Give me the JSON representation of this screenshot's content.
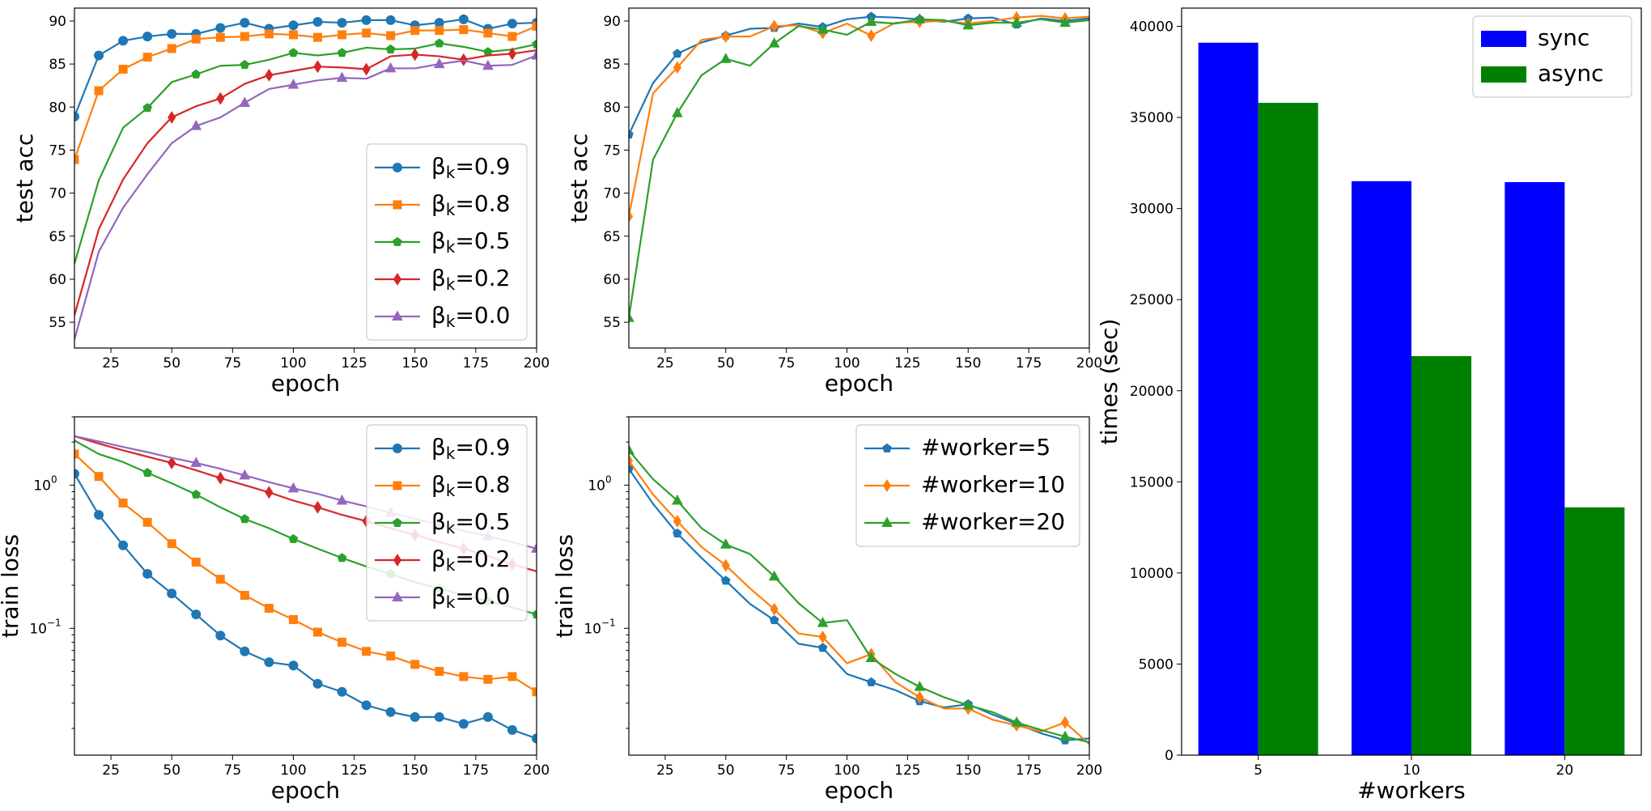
{
  "chart_data": [
    {
      "id": "p1",
      "type": "line",
      "xlabel": "epoch",
      "ylabel": "test acc",
      "yscale": "linear",
      "xlim": [
        10,
        200
      ],
      "ylim": [
        52,
        91.5
      ],
      "xticks": [
        25,
        50,
        75,
        100,
        125,
        150,
        175,
        200
      ],
      "yticks": [
        55,
        60,
        65,
        70,
        75,
        80,
        85,
        90
      ],
      "legend_loc": "lower-right",
      "x": [
        10,
        20,
        30,
        40,
        50,
        60,
        70,
        80,
        90,
        100,
        110,
        120,
        130,
        140,
        150,
        160,
        170,
        180,
        190,
        200
      ],
      "series": [
        {
          "name": "β_k=0.9",
          "label_sym": "β",
          "label_sub": "k",
          "label_rest": "=0.9",
          "color": "#1f77b4",
          "marker": "circle",
          "values": [
            78.9,
            86.0,
            87.7,
            88.2,
            88.5,
            88.5,
            89.2,
            89.8,
            89.1,
            89.5,
            89.9,
            89.8,
            90.1,
            90.1,
            89.5,
            89.8,
            90.2,
            89.1,
            89.7,
            89.8
          ]
        },
        {
          "name": "β_k=0.8",
          "label_sym": "β",
          "label_sub": "k",
          "label_rest": "=0.8",
          "color": "#ff7f0e",
          "marker": "square",
          "values": [
            73.9,
            81.9,
            84.4,
            85.8,
            86.8,
            87.9,
            88.1,
            88.2,
            88.5,
            88.4,
            88.1,
            88.4,
            88.6,
            88.3,
            88.9,
            88.9,
            89.0,
            88.6,
            88.2,
            89.4
          ]
        },
        {
          "name": "β_k=0.5",
          "label_sym": "β",
          "label_sub": "k",
          "label_rest": "=0.5",
          "color": "#2ca02c",
          "marker": "pentagon",
          "values": [
            61.8,
            71.5,
            77.6,
            79.9,
            82.9,
            83.8,
            84.8,
            84.9,
            85.5,
            86.3,
            86.0,
            86.3,
            86.9,
            86.7,
            86.8,
            87.4,
            87.0,
            86.4,
            86.7,
            87.3
          ]
        },
        {
          "name": "β_k=0.2",
          "label_sym": "β",
          "label_sub": "k",
          "label_rest": "=0.2",
          "color": "#d62728",
          "marker": "thin_diamond",
          "values": [
            55.8,
            65.8,
            71.6,
            75.8,
            78.8,
            80.1,
            81.0,
            82.7,
            83.7,
            84.2,
            84.7,
            84.6,
            84.4,
            85.9,
            86.1,
            85.9,
            85.5,
            86.0,
            86.2,
            86.6
          ]
        },
        {
          "name": "β_k=0.0",
          "label_sym": "β",
          "label_sub": "k",
          "label_rest": "=0.0",
          "color": "#9467bd",
          "marker": "triangle",
          "values": [
            53.0,
            63.2,
            68.3,
            72.2,
            75.8,
            77.8,
            78.8,
            80.5,
            82.1,
            82.6,
            83.1,
            83.4,
            83.3,
            84.5,
            84.5,
            85.0,
            85.4,
            84.8,
            84.9,
            86.0
          ]
        }
      ]
    },
    {
      "id": "p2",
      "type": "line",
      "xlabel": "epoch",
      "ylabel": "test acc",
      "yscale": "linear",
      "xlim": [
        10,
        200
      ],
      "ylim": [
        52,
        91.5
      ],
      "xticks": [
        25,
        50,
        75,
        100,
        125,
        150,
        175,
        200
      ],
      "yticks": [
        55,
        60,
        65,
        70,
        75,
        80,
        85,
        90
      ],
      "legend_loc": "none",
      "x": [
        10,
        20,
        30,
        40,
        50,
        60,
        70,
        80,
        90,
        100,
        110,
        120,
        130,
        140,
        150,
        160,
        170,
        180,
        190,
        200
      ],
      "series": [
        {
          "name": "#worker=5",
          "color": "#1f77b4",
          "marker": "pentagon",
          "values": [
            76.8,
            82.8,
            86.2,
            87.5,
            88.3,
            89.1,
            89.2,
            89.7,
            89.3,
            90.2,
            90.5,
            90.4,
            90.2,
            89.9,
            90.3,
            90.4,
            89.6,
            90.3,
            90.0,
            90.3
          ]
        },
        {
          "name": "#worker=10",
          "color": "#ff7f0e",
          "marker": "thin_diamond",
          "values": [
            67.3,
            81.6,
            84.6,
            87.8,
            88.2,
            88.2,
            89.4,
            89.5,
            88.6,
            89.7,
            88.3,
            89.8,
            89.9,
            90.0,
            89.7,
            90.0,
            90.4,
            90.6,
            90.3,
            90.5
          ]
        },
        {
          "name": "#worker=20",
          "color": "#2ca02c",
          "marker": "triangle",
          "values": [
            55.5,
            73.9,
            79.3,
            83.7,
            85.6,
            84.8,
            87.4,
            89.4,
            89.0,
            88.4,
            89.9,
            89.7,
            90.2,
            90.1,
            89.5,
            89.8,
            89.8,
            90.2,
            89.8,
            90.1
          ]
        }
      ]
    },
    {
      "id": "p3",
      "type": "line",
      "xlabel": "epoch",
      "ylabel": "train loss",
      "yscale": "log",
      "xlim": [
        10,
        200
      ],
      "ylim": [
        0.013,
        3.0
      ],
      "xticks": [
        25,
        50,
        75,
        100,
        125,
        150,
        175,
        200
      ],
      "yticks_major": [
        {
          "value": 0.1,
          "base": "10",
          "exp": "−1"
        },
        {
          "value": 1,
          "base": "10",
          "exp": "0"
        }
      ],
      "legend_loc": "upper-right",
      "x": [
        10,
        20,
        30,
        40,
        50,
        60,
        70,
        80,
        90,
        100,
        110,
        120,
        130,
        140,
        150,
        160,
        170,
        180,
        190,
        200
      ],
      "series": [
        {
          "name": "β_k=0.9",
          "label_sym": "β",
          "label_sub": "k",
          "label_rest": "=0.9",
          "color": "#1f77b4",
          "marker": "circle",
          "values": [
            1.2,
            0.62,
            0.38,
            0.24,
            0.175,
            0.125,
            0.089,
            0.069,
            0.058,
            0.055,
            0.041,
            0.036,
            0.029,
            0.026,
            0.024,
            0.024,
            0.0215,
            0.024,
            0.0195,
            0.017
          ]
        },
        {
          "name": "β_k=0.8",
          "label_sym": "β",
          "label_sub": "k",
          "label_rest": "=0.8",
          "color": "#ff7f0e",
          "marker": "square",
          "values": [
            1.65,
            1.15,
            0.75,
            0.55,
            0.39,
            0.29,
            0.22,
            0.17,
            0.138,
            0.115,
            0.094,
            0.08,
            0.069,
            0.064,
            0.056,
            0.05,
            0.046,
            0.044,
            0.046,
            0.036
          ]
        },
        {
          "name": "β_k=0.5",
          "label_sym": "β",
          "label_sub": "k",
          "label_rest": "=0.5",
          "color": "#2ca02c",
          "marker": "pentagon",
          "values": [
            2.05,
            1.65,
            1.45,
            1.22,
            1.03,
            0.86,
            0.7,
            0.58,
            0.5,
            0.42,
            0.36,
            0.31,
            0.27,
            0.24,
            0.21,
            0.19,
            0.17,
            0.155,
            0.14,
            0.125
          ]
        },
        {
          "name": "β_k=0.2",
          "label_sym": "β",
          "label_sub": "k",
          "label_rest": "=0.2",
          "color": "#d62728",
          "marker": "thin_diamond",
          "values": [
            2.2,
            1.95,
            1.75,
            1.58,
            1.43,
            1.27,
            1.12,
            1.0,
            0.89,
            0.78,
            0.7,
            0.62,
            0.56,
            0.5,
            0.45,
            0.4,
            0.36,
            0.32,
            0.28,
            0.25
          ]
        },
        {
          "name": "β_k=0.0",
          "label_sym": "β",
          "label_sub": "k",
          "label_rest": "=0.0",
          "color": "#9467bd",
          "marker": "triangle",
          "values": [
            2.2,
            2.02,
            1.85,
            1.7,
            1.55,
            1.43,
            1.3,
            1.17,
            1.05,
            0.95,
            0.87,
            0.78,
            0.71,
            0.64,
            0.58,
            0.53,
            0.48,
            0.44,
            0.4,
            0.36
          ]
        }
      ]
    },
    {
      "id": "p4",
      "type": "line",
      "xlabel": "epoch",
      "ylabel": "train loss",
      "yscale": "log",
      "xlim": [
        10,
        200
      ],
      "ylim": [
        0.013,
        3.0
      ],
      "xticks": [
        25,
        50,
        75,
        100,
        125,
        150,
        175,
        200
      ],
      "yticks_major": [
        {
          "value": 0.1,
          "base": "10",
          "exp": "−1"
        },
        {
          "value": 1,
          "base": "10",
          "exp": "0"
        }
      ],
      "legend_loc": "upper-right",
      "x": [
        10,
        20,
        30,
        40,
        50,
        60,
        70,
        80,
        90,
        100,
        110,
        120,
        130,
        140,
        150,
        160,
        170,
        180,
        190,
        200
      ],
      "series": [
        {
          "name": "#worker=5",
          "color": "#1f77b4",
          "marker": "pentagon",
          "values": [
            1.3,
            0.74,
            0.46,
            0.31,
            0.215,
            0.148,
            0.114,
            0.078,
            0.073,
            0.048,
            0.042,
            0.037,
            0.031,
            0.028,
            0.0295,
            0.025,
            0.0215,
            0.0185,
            0.0165,
            0.017
          ]
        },
        {
          "name": "#worker=10",
          "color": "#ff7f0e",
          "marker": "thin_diamond",
          "values": [
            1.48,
            0.86,
            0.56,
            0.37,
            0.275,
            0.19,
            0.136,
            0.092,
            0.087,
            0.057,
            0.066,
            0.042,
            0.033,
            0.0275,
            0.0275,
            0.023,
            0.021,
            0.019,
            0.022,
            0.0155
          ]
        },
        {
          "name": "#worker=20",
          "color": "#2ca02c",
          "marker": "triangle",
          "values": [
            1.75,
            1.1,
            0.78,
            0.5,
            0.385,
            0.33,
            0.23,
            0.15,
            0.109,
            0.114,
            0.062,
            0.048,
            0.039,
            0.033,
            0.029,
            0.026,
            0.022,
            0.0195,
            0.0175,
            0.016
          ]
        }
      ]
    },
    {
      "id": "p5",
      "type": "bar",
      "xlabel": "#workers",
      "ylabel": "times (sec)",
      "categories": [
        "5",
        "10",
        "20"
      ],
      "ylim": [
        0,
        41000
      ],
      "yticks": [
        0,
        5000,
        10000,
        15000,
        20000,
        25000,
        30000,
        35000,
        40000
      ],
      "legend_loc": "upper-right",
      "series": [
        {
          "name": "sync",
          "color": "#0000ff",
          "values": [
            39100,
            31500,
            31450
          ]
        },
        {
          "name": "async",
          "color": "#008000",
          "values": [
            35800,
            21900,
            13600
          ]
        }
      ]
    }
  ]
}
